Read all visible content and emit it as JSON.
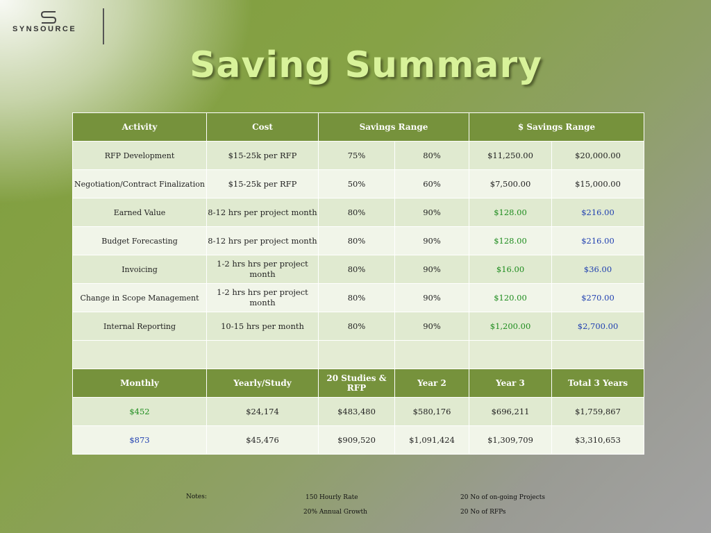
{
  "brand": {
    "name": "SYNSOURCE"
  },
  "title": "Saving Summary",
  "table": {
    "headers": [
      "Activity",
      "Cost",
      "Savings Range",
      "$ Savings Range"
    ],
    "rows": [
      {
        "activity": "RFP Development",
        "cost": "$15-25k per RFP",
        "sav_low": "75%",
        "sav_high": "80%",
        "dol_low": "$11,250.00",
        "dol_high": "$20,000.00"
      },
      {
        "activity": "Negotiation/Contract Finalization",
        "cost": "$15-25k per RFP",
        "sav_low": "50%",
        "sav_high": "60%",
        "dol_low": "$7,500.00",
        "dol_high": "$15,000.00"
      },
      {
        "activity": "Earned Value",
        "cost": "8-12 hrs per project month",
        "sav_low": "80%",
        "sav_high": "90%",
        "dol_low": "$128.00",
        "dol_high": "$216.00"
      },
      {
        "activity": "Budget Forecasting",
        "cost": "8-12 hrs per project month",
        "sav_low": "80%",
        "sav_high": "90%",
        "dol_low": "$128.00",
        "dol_high": "$216.00"
      },
      {
        "activity": "Invoicing",
        "cost": "1-2 hrs hrs per project month",
        "sav_low": "80%",
        "sav_high": "90%",
        "dol_low": "$16.00",
        "dol_high": "$36.00"
      },
      {
        "activity": "Change in Scope Management",
        "cost": "1-2 hrs hrs per project month",
        "sav_low": "80%",
        "sav_high": "90%",
        "dol_low": "$120.00",
        "dol_high": "$270.00"
      },
      {
        "activity": "Internal Reporting",
        "cost": "10-15 hrs per month",
        "sav_low": "80%",
        "sav_high": "90%",
        "dol_low": "$1,200.00",
        "dol_high": "$2,700.00"
      }
    ],
    "summary_headers": [
      "Monthly",
      "Yearly/Study",
      "20 Studies & RFP",
      "Year 2",
      "Year 3",
      "Total 3 Years"
    ],
    "summary_rows": [
      [
        "$452",
        "$24,174",
        "$483,480",
        "$580,176",
        "$696,211",
        "$1,759,867"
      ],
      [
        "$873",
        "$45,476",
        "$909,520",
        "$1,091,424",
        "$1,309,709",
        "$3,310,653"
      ]
    ]
  },
  "notes": {
    "label": "Notes:",
    "hourly_rate": "150 Hourly Rate",
    "annual_growth": "20% Annual Growth",
    "ongoing_projects": "20 No of on-going Projects",
    "rfps": "20 No of RFPs"
  }
}
